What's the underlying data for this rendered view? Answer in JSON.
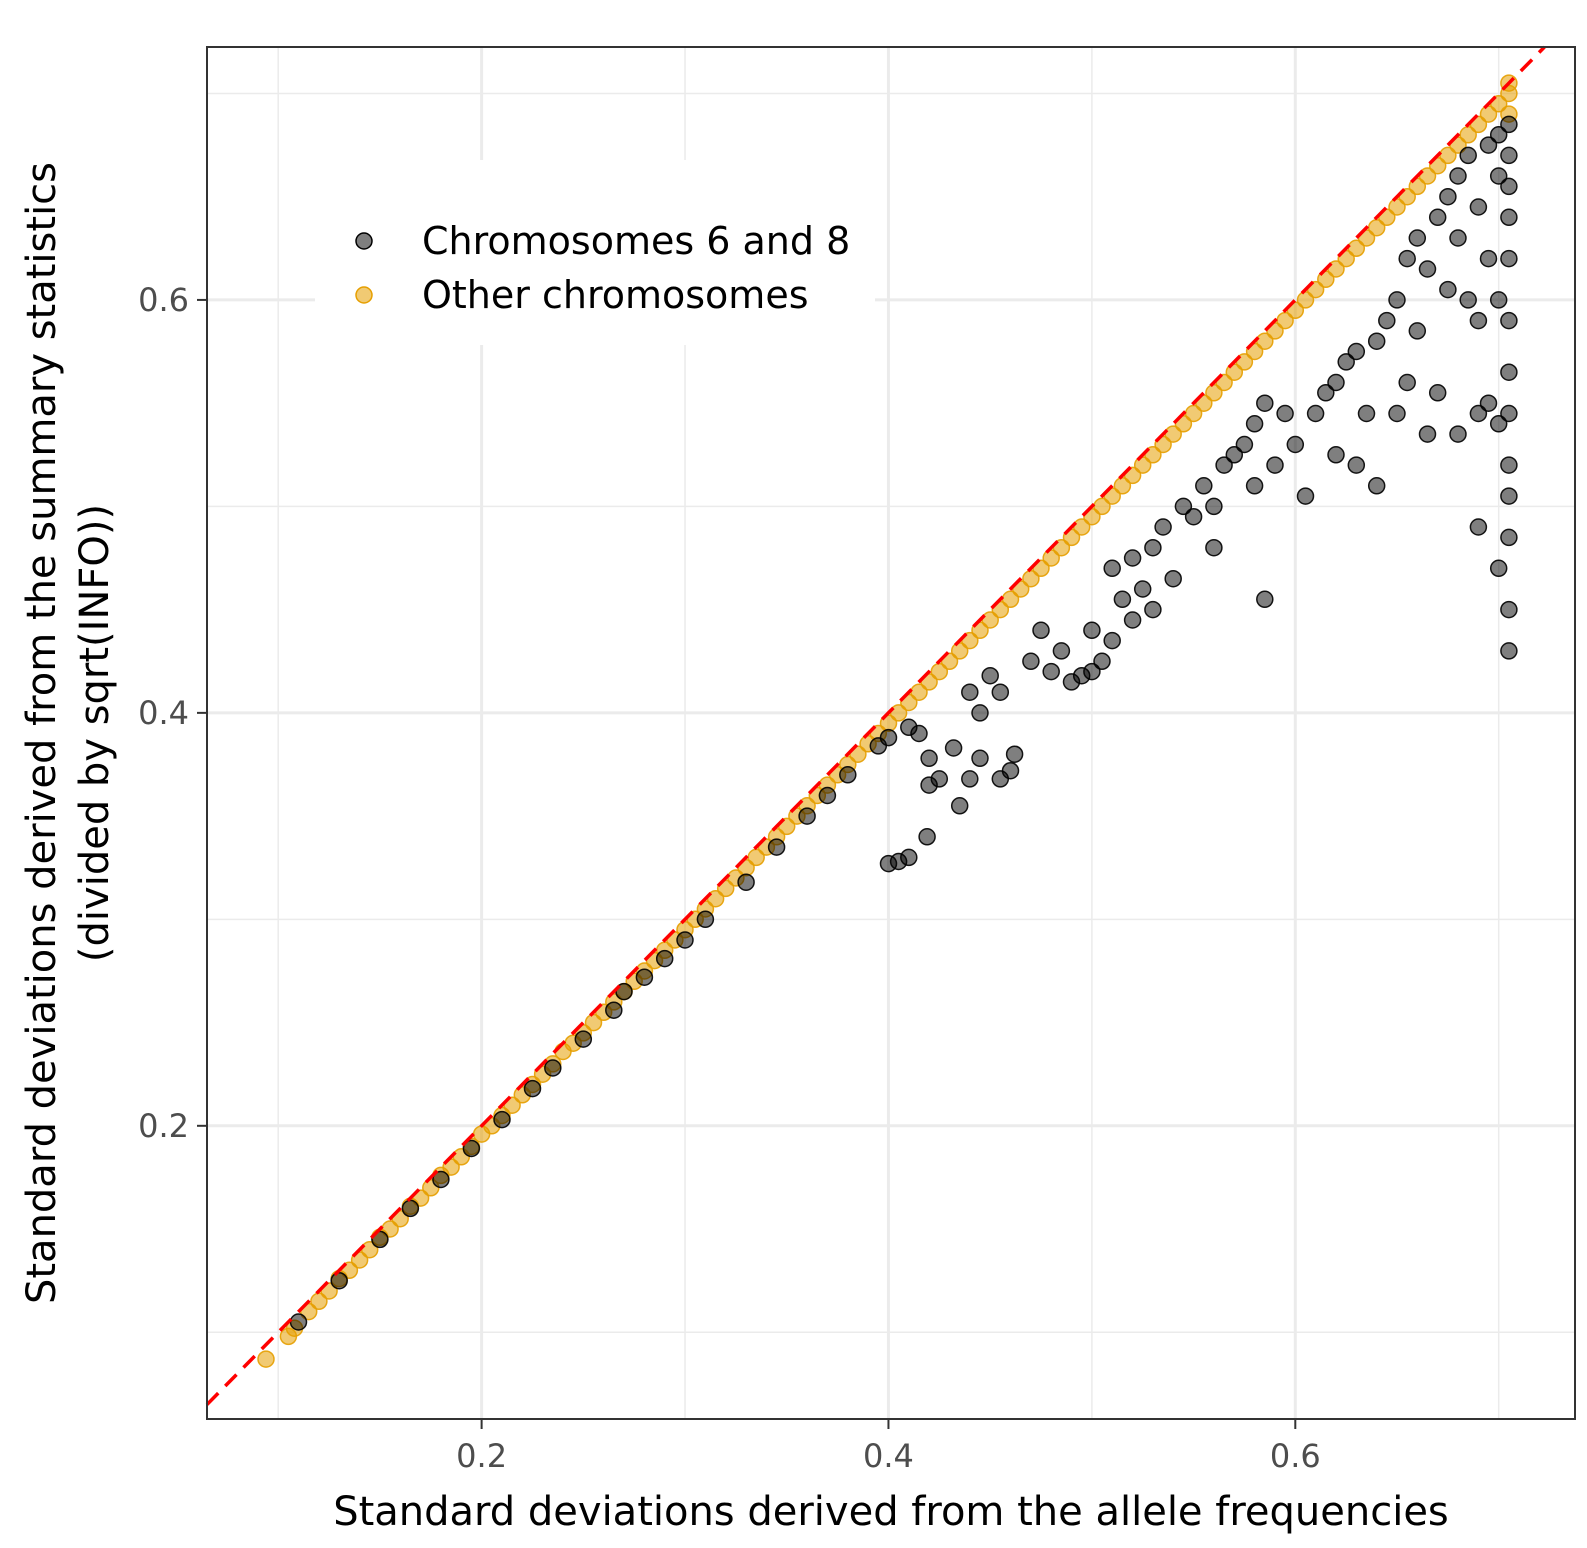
{
  "chart_data": {
    "type": "scatter",
    "xlabel": "Standard deviations derived from the allele frequencies",
    "ylabel_line1": "Standard deviations derived from the summary statistics",
    "ylabel_line2": "(divided by sqrt(INFO))",
    "xlim": [
      0.065,
      0.7375
    ],
    "ylim": [
      0.058,
      0.7225
    ],
    "x_ticks": [
      0.2,
      0.4,
      0.6
    ],
    "x_tick_labels": [
      "0.2",
      "0.4",
      "0.6"
    ],
    "y_ticks": [
      0.2,
      0.4,
      0.6
    ],
    "y_tick_labels": [
      "0.2",
      "0.4",
      "0.6"
    ],
    "grid": true,
    "reference_line": {
      "slope": 1,
      "intercept": 0,
      "color": "#ff0000",
      "style": "dashed"
    },
    "legend": {
      "placement": "top-left",
      "entries": [
        {
          "label": "Chromosomes 6 and 8",
          "color": "#000000"
        },
        {
          "label": "Other chromosomes",
          "color": "#E69F00"
        }
      ]
    },
    "series": [
      {
        "name": "Chromosomes 6 and 8",
        "color": "#000000",
        "points": [
          [
            0.11,
            0.105
          ],
          [
            0.13,
            0.125
          ],
          [
            0.15,
            0.145
          ],
          [
            0.165,
            0.16
          ],
          [
            0.18,
            0.174
          ],
          [
            0.195,
            0.189
          ],
          [
            0.21,
            0.203
          ],
          [
            0.225,
            0.218
          ],
          [
            0.235,
            0.228
          ],
          [
            0.25,
            0.242
          ],
          [
            0.265,
            0.256
          ],
          [
            0.27,
            0.265
          ],
          [
            0.28,
            0.272
          ],
          [
            0.29,
            0.281
          ],
          [
            0.3,
            0.29
          ],
          [
            0.31,
            0.3
          ],
          [
            0.33,
            0.318
          ],
          [
            0.345,
            0.335
          ],
          [
            0.36,
            0.35
          ],
          [
            0.37,
            0.36
          ],
          [
            0.38,
            0.37
          ],
          [
            0.395,
            0.384
          ],
          [
            0.4,
            0.388
          ],
          [
            0.41,
            0.393
          ],
          [
            0.415,
            0.39
          ],
          [
            0.42,
            0.378
          ],
          [
            0.4,
            0.327
          ],
          [
            0.405,
            0.328
          ],
          [
            0.41,
            0.33
          ],
          [
            0.419,
            0.34
          ],
          [
            0.42,
            0.365
          ],
          [
            0.425,
            0.368
          ],
          [
            0.432,
            0.383
          ],
          [
            0.435,
            0.355
          ],
          [
            0.44,
            0.368
          ],
          [
            0.445,
            0.378
          ],
          [
            0.455,
            0.368
          ],
          [
            0.46,
            0.372
          ],
          [
            0.462,
            0.38
          ],
          [
            0.44,
            0.41
          ],
          [
            0.445,
            0.4
          ],
          [
            0.45,
            0.418
          ],
          [
            0.455,
            0.41
          ],
          [
            0.47,
            0.425
          ],
          [
            0.475,
            0.44
          ],
          [
            0.48,
            0.42
          ],
          [
            0.485,
            0.43
          ],
          [
            0.49,
            0.415
          ],
          [
            0.495,
            0.418
          ],
          [
            0.5,
            0.42
          ],
          [
            0.505,
            0.425
          ],
          [
            0.51,
            0.435
          ],
          [
            0.52,
            0.445
          ],
          [
            0.5,
            0.44
          ],
          [
            0.51,
            0.47
          ],
          [
            0.515,
            0.455
          ],
          [
            0.52,
            0.475
          ],
          [
            0.525,
            0.46
          ],
          [
            0.53,
            0.48
          ],
          [
            0.53,
            0.45
          ],
          [
            0.535,
            0.49
          ],
          [
            0.54,
            0.465
          ],
          [
            0.545,
            0.5
          ],
          [
            0.55,
            0.495
          ],
          [
            0.555,
            0.51
          ],
          [
            0.56,
            0.48
          ],
          [
            0.56,
            0.5
          ],
          [
            0.565,
            0.52
          ],
          [
            0.57,
            0.525
          ],
          [
            0.575,
            0.53
          ],
          [
            0.58,
            0.51
          ],
          [
            0.58,
            0.54
          ],
          [
            0.585,
            0.55
          ],
          [
            0.585,
            0.455
          ],
          [
            0.59,
            0.52
          ],
          [
            0.595,
            0.545
          ],
          [
            0.6,
            0.53
          ],
          [
            0.605,
            0.505
          ],
          [
            0.61,
            0.545
          ],
          [
            0.615,
            0.555
          ],
          [
            0.62,
            0.525
          ],
          [
            0.62,
            0.56
          ],
          [
            0.625,
            0.57
          ],
          [
            0.63,
            0.52
          ],
          [
            0.63,
            0.575
          ],
          [
            0.635,
            0.545
          ],
          [
            0.64,
            0.51
          ],
          [
            0.64,
            0.58
          ],
          [
            0.645,
            0.59
          ],
          [
            0.65,
            0.545
          ],
          [
            0.65,
            0.6
          ],
          [
            0.655,
            0.56
          ],
          [
            0.655,
            0.62
          ],
          [
            0.66,
            0.585
          ],
          [
            0.66,
            0.63
          ],
          [
            0.665,
            0.535
          ],
          [
            0.665,
            0.615
          ],
          [
            0.67,
            0.64
          ],
          [
            0.67,
            0.555
          ],
          [
            0.675,
            0.605
          ],
          [
            0.675,
            0.65
          ],
          [
            0.68,
            0.535
          ],
          [
            0.68,
            0.63
          ],
          [
            0.68,
            0.66
          ],
          [
            0.685,
            0.6
          ],
          [
            0.685,
            0.67
          ],
          [
            0.69,
            0.49
          ],
          [
            0.69,
            0.545
          ],
          [
            0.69,
            0.59
          ],
          [
            0.69,
            0.645
          ],
          [
            0.695,
            0.55
          ],
          [
            0.695,
            0.62
          ],
          [
            0.695,
            0.675
          ],
          [
            0.7,
            0.47
          ],
          [
            0.7,
            0.54
          ],
          [
            0.7,
            0.6
          ],
          [
            0.7,
            0.66
          ],
          [
            0.7,
            0.68
          ],
          [
            0.705,
            0.43
          ],
          [
            0.705,
            0.45
          ],
          [
            0.705,
            0.485
          ],
          [
            0.705,
            0.505
          ],
          [
            0.705,
            0.52
          ],
          [
            0.705,
            0.545
          ],
          [
            0.705,
            0.565
          ],
          [
            0.705,
            0.59
          ],
          [
            0.705,
            0.62
          ],
          [
            0.705,
            0.64
          ],
          [
            0.705,
            0.655
          ],
          [
            0.705,
            0.67
          ],
          [
            0.705,
            0.685
          ]
        ]
      },
      {
        "name": "Other chromosomes",
        "color": "#E69F00",
        "points": [
          [
            0.094,
            0.087
          ],
          [
            0.105,
            0.098
          ],
          [
            0.108,
            0.102
          ],
          [
            0.115,
            0.11
          ],
          [
            0.12,
            0.115
          ],
          [
            0.125,
            0.12
          ],
          [
            0.13,
            0.126
          ],
          [
            0.135,
            0.13
          ],
          [
            0.14,
            0.135
          ],
          [
            0.145,
            0.14
          ],
          [
            0.15,
            0.146
          ],
          [
            0.155,
            0.15
          ],
          [
            0.16,
            0.155
          ],
          [
            0.165,
            0.161
          ],
          [
            0.17,
            0.165
          ],
          [
            0.175,
            0.17
          ],
          [
            0.18,
            0.176
          ],
          [
            0.185,
            0.18
          ],
          [
            0.19,
            0.185
          ],
          [
            0.195,
            0.19
          ],
          [
            0.2,
            0.196
          ],
          [
            0.205,
            0.2
          ],
          [
            0.21,
            0.205
          ],
          [
            0.215,
            0.21
          ],
          [
            0.22,
            0.215
          ],
          [
            0.225,
            0.22
          ],
          [
            0.23,
            0.225
          ],
          [
            0.235,
            0.23
          ],
          [
            0.24,
            0.236
          ],
          [
            0.245,
            0.24
          ],
          [
            0.25,
            0.245
          ],
          [
            0.255,
            0.25
          ],
          [
            0.26,
            0.255
          ],
          [
            0.265,
            0.26
          ],
          [
            0.27,
            0.265
          ],
          [
            0.275,
            0.27
          ],
          [
            0.28,
            0.275
          ],
          [
            0.285,
            0.28
          ],
          [
            0.29,
            0.285
          ],
          [
            0.295,
            0.29
          ],
          [
            0.3,
            0.295
          ],
          [
            0.305,
            0.3
          ],
          [
            0.31,
            0.305
          ],
          [
            0.315,
            0.31
          ],
          [
            0.32,
            0.315
          ],
          [
            0.325,
            0.32
          ],
          [
            0.33,
            0.325
          ],
          [
            0.335,
            0.33
          ],
          [
            0.34,
            0.335
          ],
          [
            0.345,
            0.34
          ],
          [
            0.35,
            0.345
          ],
          [
            0.355,
            0.35
          ],
          [
            0.36,
            0.355
          ],
          [
            0.365,
            0.36
          ],
          [
            0.37,
            0.365
          ],
          [
            0.375,
            0.37
          ],
          [
            0.38,
            0.375
          ],
          [
            0.385,
            0.38
          ],
          [
            0.39,
            0.385
          ],
          [
            0.395,
            0.39
          ],
          [
            0.4,
            0.395
          ],
          [
            0.405,
            0.4
          ],
          [
            0.41,
            0.405
          ],
          [
            0.415,
            0.41
          ],
          [
            0.42,
            0.415
          ],
          [
            0.425,
            0.42
          ],
          [
            0.43,
            0.425
          ],
          [
            0.435,
            0.43
          ],
          [
            0.44,
            0.435
          ],
          [
            0.445,
            0.44
          ],
          [
            0.45,
            0.445
          ],
          [
            0.455,
            0.45
          ],
          [
            0.46,
            0.455
          ],
          [
            0.465,
            0.46
          ],
          [
            0.47,
            0.465
          ],
          [
            0.475,
            0.47
          ],
          [
            0.48,
            0.475
          ],
          [
            0.485,
            0.48
          ],
          [
            0.49,
            0.485
          ],
          [
            0.495,
            0.49
          ],
          [
            0.5,
            0.495
          ],
          [
            0.505,
            0.5
          ],
          [
            0.51,
            0.505
          ],
          [
            0.515,
            0.51
          ],
          [
            0.52,
            0.515
          ],
          [
            0.525,
            0.52
          ],
          [
            0.53,
            0.525
          ],
          [
            0.535,
            0.53
          ],
          [
            0.54,
            0.535
          ],
          [
            0.545,
            0.54
          ],
          [
            0.55,
            0.545
          ],
          [
            0.555,
            0.55
          ],
          [
            0.56,
            0.555
          ],
          [
            0.565,
            0.56
          ],
          [
            0.57,
            0.565
          ],
          [
            0.575,
            0.57
          ],
          [
            0.58,
            0.575
          ],
          [
            0.585,
            0.58
          ],
          [
            0.59,
            0.585
          ],
          [
            0.595,
            0.59
          ],
          [
            0.6,
            0.595
          ],
          [
            0.605,
            0.6
          ],
          [
            0.61,
            0.605
          ],
          [
            0.615,
            0.61
          ],
          [
            0.62,
            0.615
          ],
          [
            0.625,
            0.62
          ],
          [
            0.63,
            0.625
          ],
          [
            0.635,
            0.63
          ],
          [
            0.64,
            0.635
          ],
          [
            0.645,
            0.64
          ],
          [
            0.65,
            0.645
          ],
          [
            0.655,
            0.65
          ],
          [
            0.66,
            0.655
          ],
          [
            0.665,
            0.66
          ],
          [
            0.67,
            0.665
          ],
          [
            0.675,
            0.67
          ],
          [
            0.68,
            0.675
          ],
          [
            0.685,
            0.68
          ],
          [
            0.69,
            0.685
          ],
          [
            0.695,
            0.69
          ],
          [
            0.7,
            0.695
          ],
          [
            0.705,
            0.7
          ],
          [
            0.705,
            0.69
          ],
          [
            0.705,
            0.705
          ]
        ]
      }
    ]
  }
}
